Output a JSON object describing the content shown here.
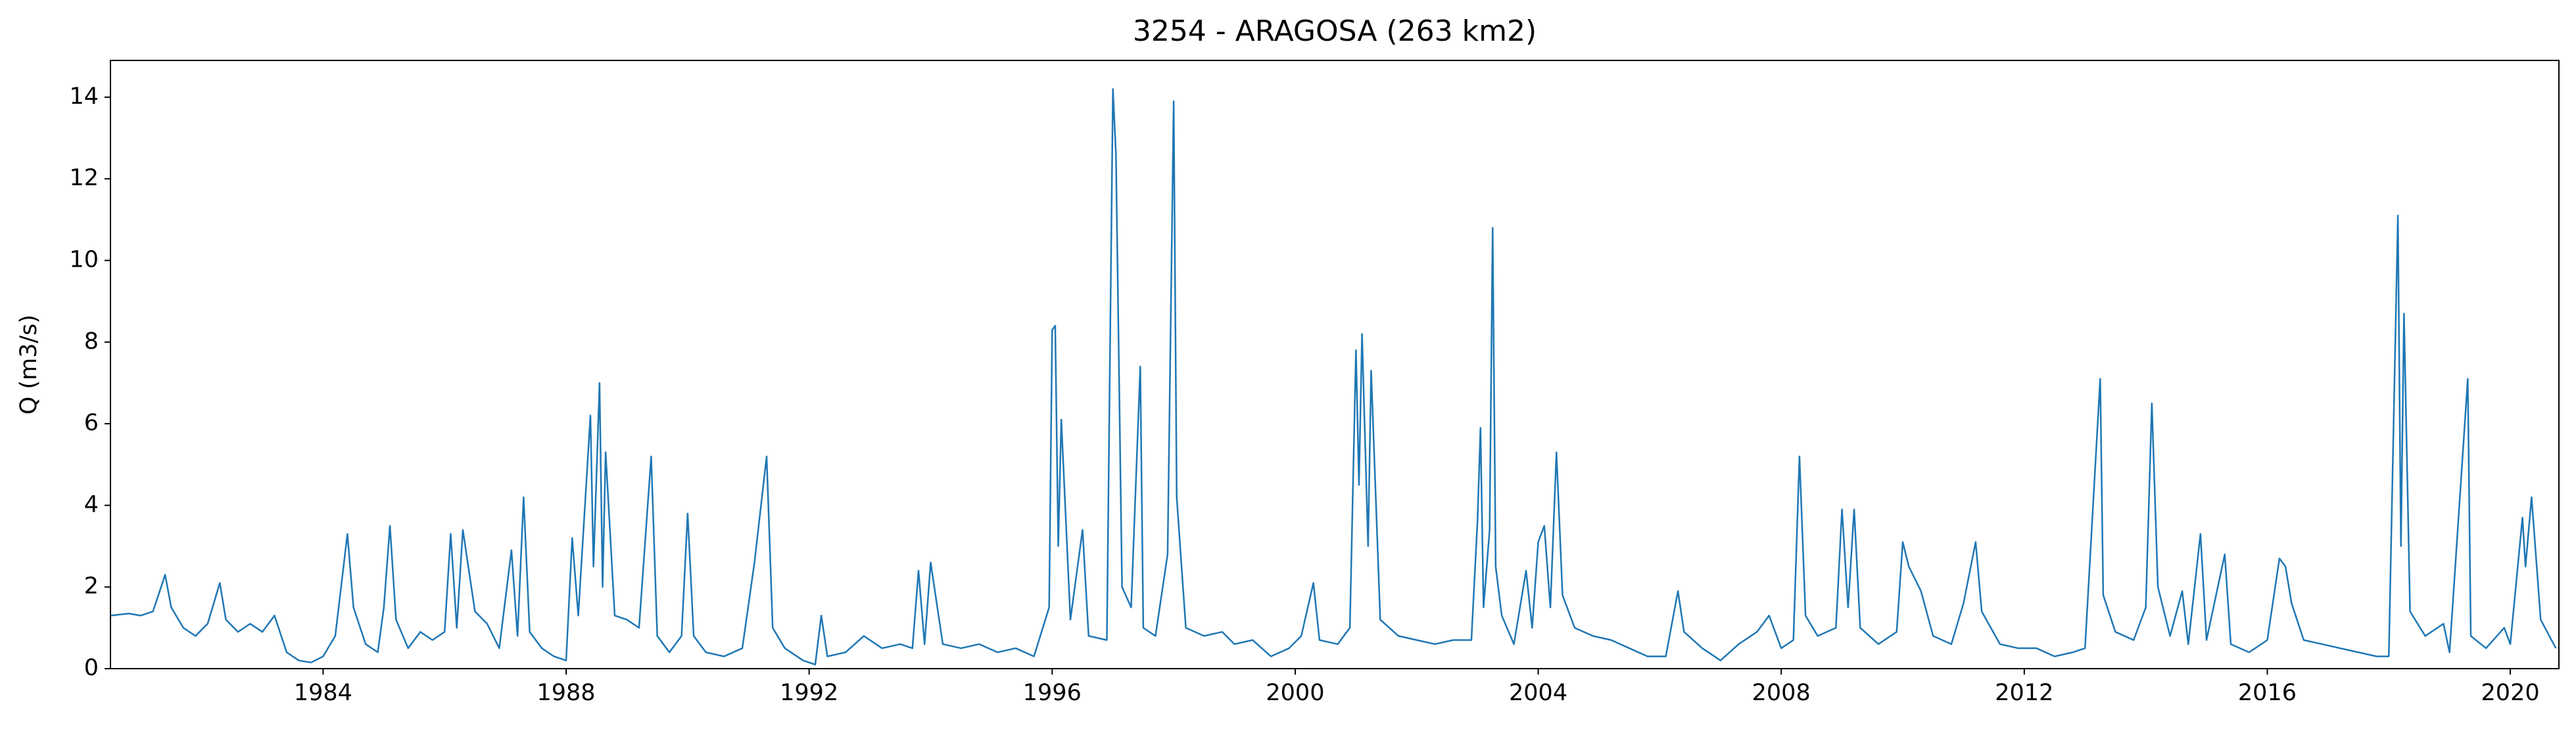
{
  "chart_data": {
    "type": "line",
    "title": "3254 - ARAGOSA (263 km2)",
    "ylabel": "Q (m3/s)",
    "color": "#1f77b4",
    "xlim": [
      1980.5,
      2020.8
    ],
    "xticks": [
      1984,
      1988,
      1992,
      1996,
      2000,
      2004,
      2008,
      2012,
      2016,
      2020
    ],
    "ylim": [
      0,
      14.9
    ],
    "yticks": [
      0,
      2,
      4,
      6,
      8,
      10,
      12,
      14
    ],
    "grid": false,
    "x": [
      1980.5,
      1980.8,
      1981.0,
      1981.2,
      1981.4,
      1981.5,
      1981.7,
      1981.9,
      1982.1,
      1982.3,
      1982.4,
      1982.6,
      1982.8,
      1983.0,
      1983.2,
      1983.4,
      1983.6,
      1983.8,
      1984.0,
      1984.2,
      1984.4,
      1984.5,
      1984.7,
      1984.9,
      1985.0,
      1985.1,
      1985.2,
      1985.4,
      1985.6,
      1985.8,
      1986.0,
      1986.1,
      1986.2,
      1986.3,
      1986.5,
      1986.7,
      1986.9,
      1987.1,
      1987.2,
      1987.3,
      1987.4,
      1987.6,
      1987.8,
      1988.0,
      1988.1,
      1988.2,
      1988.4,
      1988.45,
      1988.55,
      1988.6,
      1988.65,
      1988.8,
      1989.0,
      1989.2,
      1989.4,
      1989.5,
      1989.7,
      1989.9,
      1990.0,
      1990.1,
      1990.3,
      1990.6,
      1990.9,
      1991.1,
      1991.3,
      1991.4,
      1991.6,
      1991.9,
      1992.1,
      1992.2,
      1992.3,
      1992.6,
      1992.9,
      1993.2,
      1993.5,
      1993.7,
      1993.8,
      1993.9,
      1994.0,
      1994.2,
      1994.5,
      1994.8,
      1995.1,
      1995.4,
      1995.7,
      1995.95,
      1996.0,
      1996.05,
      1996.1,
      1996.15,
      1996.3,
      1996.5,
      1996.6,
      1996.9,
      1997.0,
      1997.05,
      1997.15,
      1997.3,
      1997.45,
      1997.5,
      1997.7,
      1997.9,
      1998.0,
      1998.05,
      1998.2,
      1998.5,
      1998.8,
      1999.0,
      1999.3,
      1999.6,
      1999.9,
      2000.1,
      2000.3,
      2000.4,
      2000.7,
      2000.9,
      2001.0,
      2001.05,
      2001.1,
      2001.2,
      2001.25,
      2001.4,
      2001.7,
      2002.0,
      2002.3,
      2002.6,
      2002.9,
      2003.0,
      2003.05,
      2003.1,
      2003.2,
      2003.25,
      2003.3,
      2003.4,
      2003.6,
      2003.8,
      2003.9,
      2004.0,
      2004.1,
      2004.2,
      2004.3,
      2004.4,
      2004.6,
      2004.9,
      2005.2,
      2005.5,
      2005.8,
      2006.1,
      2006.3,
      2006.4,
      2006.7,
      2007.0,
      2007.3,
      2007.6,
      2007.8,
      2008.0,
      2008.2,
      2008.3,
      2008.4,
      2008.6,
      2008.9,
      2009.0,
      2009.1,
      2009.2,
      2009.3,
      2009.6,
      2009.9,
      2010.0,
      2010.1,
      2010.3,
      2010.5,
      2010.8,
      2011.0,
      2011.2,
      2011.3,
      2011.6,
      2011.9,
      2012.2,
      2012.5,
      2012.8,
      2013.0,
      2013.25,
      2013.3,
      2013.5,
      2013.8,
      2014.0,
      2014.1,
      2014.2,
      2014.4,
      2014.6,
      2014.7,
      2014.9,
      2015.0,
      2015.3,
      2015.4,
      2015.7,
      2016.0,
      2016.2,
      2016.3,
      2016.4,
      2016.6,
      2016.9,
      2017.2,
      2017.5,
      2017.8,
      2018.0,
      2018.15,
      2018.2,
      2018.25,
      2018.35,
      2018.6,
      2018.9,
      2019.0,
      2019.3,
      2019.35,
      2019.6,
      2019.9,
      2020.0,
      2020.2,
      2020.25,
      2020.35,
      2020.5,
      2020.75
    ],
    "values": [
      1.3,
      1.35,
      1.3,
      1.4,
      2.3,
      1.5,
      1.0,
      0.8,
      1.1,
      2.1,
      1.2,
      0.9,
      1.1,
      0.9,
      1.3,
      0.4,
      0.2,
      0.15,
      0.3,
      0.8,
      3.3,
      1.5,
      0.6,
      0.4,
      1.5,
      3.5,
      1.2,
      0.5,
      0.9,
      0.7,
      0.9,
      3.3,
      1.0,
      3.4,
      1.4,
      1.1,
      0.5,
      2.9,
      0.8,
      4.2,
      0.9,
      0.5,
      0.3,
      0.2,
      3.2,
      1.3,
      6.2,
      2.5,
      7.0,
      2.0,
      5.3,
      1.3,
      1.2,
      1.0,
      5.2,
      0.8,
      0.4,
      0.8,
      3.8,
      0.8,
      0.4,
      0.3,
      0.5,
      2.6,
      5.2,
      1.0,
      0.5,
      0.2,
      0.1,
      1.3,
      0.3,
      0.4,
      0.8,
      0.5,
      0.6,
      0.5,
      2.4,
      0.6,
      2.6,
      0.6,
      0.5,
      0.6,
      0.4,
      0.5,
      0.3,
      1.5,
      8.3,
      8.4,
      3.0,
      6.1,
      1.2,
      3.4,
      0.8,
      0.7,
      14.2,
      12.6,
      2.0,
      1.5,
      7.4,
      1.0,
      0.8,
      2.8,
      13.9,
      4.2,
      1.0,
      0.8,
      0.9,
      0.6,
      0.7,
      0.3,
      0.5,
      0.8,
      2.1,
      0.7,
      0.6,
      1.0,
      7.8,
      4.5,
      8.2,
      3.0,
      7.3,
      1.2,
      0.8,
      0.7,
      0.6,
      0.7,
      0.7,
      3.6,
      5.9,
      1.5,
      3.4,
      10.8,
      2.5,
      1.3,
      0.6,
      2.4,
      1.0,
      3.1,
      3.5,
      1.5,
      5.3,
      1.8,
      1.0,
      0.8,
      0.7,
      0.5,
      0.3,
      0.3,
      1.9,
      0.9,
      0.5,
      0.2,
      0.6,
      0.9,
      1.3,
      0.5,
      0.7,
      5.2,
      1.3,
      0.8,
      1.0,
      3.9,
      1.5,
      3.9,
      1.0,
      0.6,
      0.9,
      3.1,
      2.5,
      1.9,
      0.8,
      0.6,
      1.6,
      3.1,
      1.4,
      0.6,
      0.5,
      0.5,
      0.3,
      0.4,
      0.5,
      7.1,
      1.8,
      0.9,
      0.7,
      1.5,
      6.5,
      2.0,
      0.8,
      1.9,
      0.6,
      3.3,
      0.7,
      2.8,
      0.6,
      0.4,
      0.7,
      2.7,
      2.5,
      1.6,
      0.7,
      0.6,
      0.5,
      0.4,
      0.3,
      0.3,
      11.1,
      3.0,
      8.7,
      1.4,
      0.8,
      1.1,
      0.4,
      7.1,
      0.8,
      0.5,
      1.0,
      0.6,
      3.7,
      2.5,
      4.2,
      1.2,
      0.5
    ]
  }
}
